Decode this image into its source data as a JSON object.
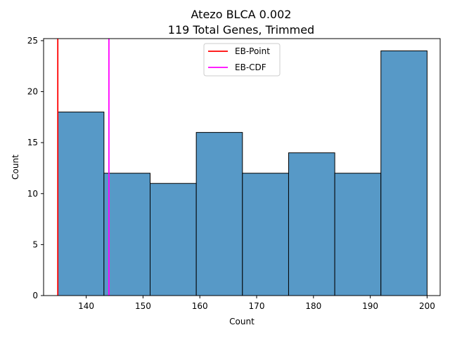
{
  "chart_data": {
    "type": "bar",
    "title_line1": "Atezo BLCA 0.002",
    "title_line2": "119 Total Genes, Trimmed",
    "xlabel": "Count",
    "ylabel": "Count",
    "xlim": [
      132.5,
      202.3
    ],
    "ylim": [
      0,
      25.2
    ],
    "xticks": [
      140,
      150,
      160,
      170,
      180,
      190,
      200
    ],
    "yticks": [
      0,
      5,
      10,
      15,
      20,
      25
    ],
    "bin_edges": [
      135.0,
      143.125,
      151.25,
      159.375,
      167.5,
      175.625,
      183.75,
      191.875,
      200.0
    ],
    "values": [
      18,
      12,
      11,
      16,
      12,
      14,
      12,
      24
    ],
    "bar_color": "#5799c7",
    "vlines": [
      {
        "name": "EB-Point",
        "x": 135.0,
        "color": "#ff0000"
      },
      {
        "name": "EB-CDF",
        "x": 144.0,
        "color": "#ff00ff"
      }
    ],
    "legend_position": "upper center",
    "grid": false
  }
}
